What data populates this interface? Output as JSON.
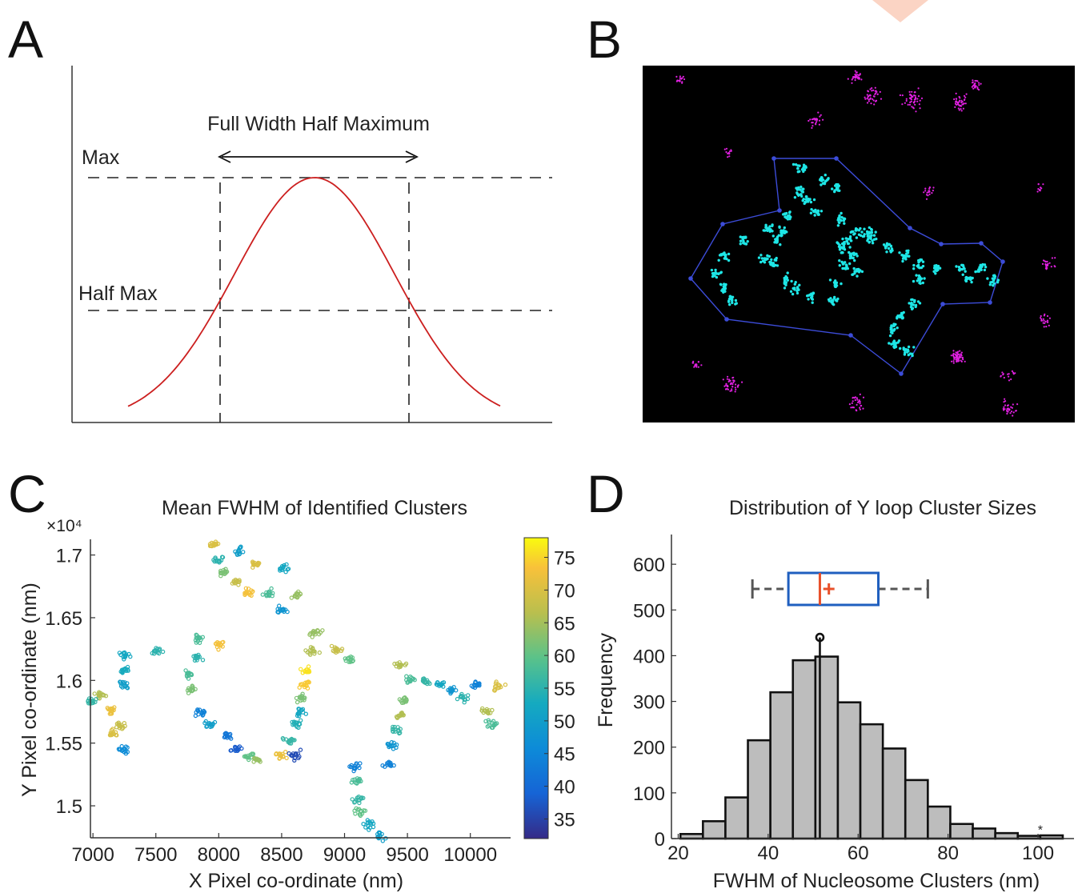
{
  "panels": {
    "a": "A",
    "b": "B",
    "c": "C",
    "d": "D"
  },
  "panel_a": {
    "fwhm_label": "Full Width Half Maximum",
    "max_label": "Max",
    "half_max_label": "Half Max"
  },
  "colors": {
    "curve": "#cc1f1f",
    "cyan": "#1ee6e6",
    "magenta": "#e020e0",
    "hull": "#3c4cd8",
    "hist_fill": "#bdbdbd",
    "box_blue": "#1f5fbf",
    "box_red": "#e8502a"
  },
  "chart_data": [
    {
      "type": "scatter",
      "title": "Mean FWHM of Identified Clusters",
      "xlabel": "X Pixel co-ordinate (nm)",
      "ylabel": "Y Pixel co-ordinate (nm)",
      "y_exponent": "×10⁴",
      "xlim": [
        6980,
        10320
      ],
      "ylim": [
        1.4745,
        1.7125
      ],
      "xticks": [
        7000,
        7500,
        8000,
        8500,
        9000,
        9500,
        10000
      ],
      "xtick_labels": [
        "7000",
        "7500",
        "8000",
        "8500",
        "9000",
        "9500",
        "10000"
      ],
      "yticks": [
        1.5,
        1.55,
        1.6,
        1.65,
        1.7
      ],
      "ytick_labels": [
        "1.5",
        "1.55",
        "1.6",
        "1.65",
        "1.7"
      ],
      "colorbar": {
        "range": [
          32,
          78
        ],
        "ticks": [
          35,
          40,
          45,
          50,
          55,
          60,
          65,
          70,
          75
        ],
        "tick_labels": [
          "35",
          "40",
          "45",
          "50",
          "55",
          "60",
          "65",
          "70",
          "75"
        ]
      },
      "clusters": [
        {
          "x": 7160,
          "y": 1.558,
          "v": 70
        },
        {
          "x": 7220,
          "y": 1.564,
          "v": 68
        },
        {
          "x": 7150,
          "y": 1.576,
          "v": 72
        },
        {
          "x": 7060,
          "y": 1.588,
          "v": 66
        },
        {
          "x": 7250,
          "y": 1.596,
          "v": 50
        },
        {
          "x": 7240,
          "y": 1.608,
          "v": 53
        },
        {
          "x": 7250,
          "y": 1.62,
          "v": 52
        },
        {
          "x": 7240,
          "y": 1.545,
          "v": 46
        },
        {
          "x": 7000,
          "y": 1.583,
          "v": 56
        },
        {
          "x": 7500,
          "y": 1.623,
          "v": 55
        },
        {
          "x": 7760,
          "y": 1.605,
          "v": 58
        },
        {
          "x": 7780,
          "y": 1.593,
          "v": 62
        },
        {
          "x": 7830,
          "y": 1.618,
          "v": 55
        },
        {
          "x": 7840,
          "y": 1.633,
          "v": 58
        },
        {
          "x": 7860,
          "y": 1.574,
          "v": 44
        },
        {
          "x": 7930,
          "y": 1.565,
          "v": 50
        },
        {
          "x": 8000,
          "y": 1.628,
          "v": 73
        },
        {
          "x": 8060,
          "y": 1.555,
          "v": 42
        },
        {
          "x": 8140,
          "y": 1.546,
          "v": 38
        },
        {
          "x": 8240,
          "y": 1.539,
          "v": 60
        },
        {
          "x": 8300,
          "y": 1.537,
          "v": 64
        },
        {
          "x": 8500,
          "y": 1.54,
          "v": 72
        },
        {
          "x": 8600,
          "y": 1.54,
          "v": 36
        },
        {
          "x": 8560,
          "y": 1.552,
          "v": 56
        },
        {
          "x": 8620,
          "y": 1.565,
          "v": 54
        },
        {
          "x": 8640,
          "y": 1.575,
          "v": 52
        },
        {
          "x": 8660,
          "y": 1.586,
          "v": 62
        },
        {
          "x": 8680,
          "y": 1.597,
          "v": 74
        },
        {
          "x": 8700,
          "y": 1.608,
          "v": 76
        },
        {
          "x": 8740,
          "y": 1.623,
          "v": 66
        },
        {
          "x": 8760,
          "y": 1.638,
          "v": 64
        },
        {
          "x": 8940,
          "y": 1.624,
          "v": 68
        },
        {
          "x": 9040,
          "y": 1.617,
          "v": 60
        },
        {
          "x": 9080,
          "y": 1.531,
          "v": 44
        },
        {
          "x": 9100,
          "y": 1.52,
          "v": 58
        },
        {
          "x": 9110,
          "y": 1.505,
          "v": 56
        },
        {
          "x": 9130,
          "y": 1.495,
          "v": 60
        },
        {
          "x": 9190,
          "y": 1.485,
          "v": 52
        },
        {
          "x": 9270,
          "y": 1.476,
          "v": 50
        },
        {
          "x": 9360,
          "y": 1.533,
          "v": 44
        },
        {
          "x": 9380,
          "y": 1.548,
          "v": 48
        },
        {
          "x": 9410,
          "y": 1.56,
          "v": 56
        },
        {
          "x": 9440,
          "y": 1.572,
          "v": 66
        },
        {
          "x": 9480,
          "y": 1.584,
          "v": 62
        },
        {
          "x": 9440,
          "y": 1.612,
          "v": 66
        },
        {
          "x": 9520,
          "y": 1.601,
          "v": 58
        },
        {
          "x": 9640,
          "y": 1.599,
          "v": 56
        },
        {
          "x": 9760,
          "y": 1.597,
          "v": 52
        },
        {
          "x": 9860,
          "y": 1.592,
          "v": 48
        },
        {
          "x": 9940,
          "y": 1.586,
          "v": 55
        },
        {
          "x": 10050,
          "y": 1.596,
          "v": 44
        },
        {
          "x": 10120,
          "y": 1.576,
          "v": 66
        },
        {
          "x": 10160,
          "y": 1.565,
          "v": 58
        },
        {
          "x": 10230,
          "y": 1.595,
          "v": 70
        },
        {
          "x": 7960,
          "y": 1.708,
          "v": 70
        },
        {
          "x": 8000,
          "y": 1.696,
          "v": 55
        },
        {
          "x": 8040,
          "y": 1.686,
          "v": 62
        },
        {
          "x": 8140,
          "y": 1.678,
          "v": 68
        },
        {
          "x": 8240,
          "y": 1.67,
          "v": 73
        },
        {
          "x": 8290,
          "y": 1.693,
          "v": 70
        },
        {
          "x": 8400,
          "y": 1.669,
          "v": 58
        },
        {
          "x": 8520,
          "y": 1.69,
          "v": 52
        },
        {
          "x": 8620,
          "y": 1.668,
          "v": 64
        },
        {
          "x": 8500,
          "y": 1.656,
          "v": 48
        },
        {
          "x": 8160,
          "y": 1.703,
          "v": 50
        }
      ]
    },
    {
      "type": "bar",
      "title": "Distribution of Y loop Cluster Sizes",
      "xlabel": "FWHM of Nucleosome Clusters (nm)",
      "ylabel": "Frequency",
      "xlim": [
        18.5,
        108
      ],
      "ylim": [
        0,
        665
      ],
      "xticks": [
        20,
        40,
        60,
        80,
        100
      ],
      "xtick_labels": [
        "20",
        "40",
        "60",
        "80",
        "100"
      ],
      "yticks": [
        0,
        100,
        200,
        300,
        400,
        500,
        600
      ],
      "ytick_labels": [
        "0",
        "100",
        "200",
        "300",
        "400",
        "500",
        "600"
      ],
      "bin_edges": [
        20.5,
        25.5,
        30.5,
        35.5,
        40.5,
        45.5,
        50.5,
        55.5,
        60.5,
        65.5,
        70.5,
        75.5,
        80.5,
        85.5,
        90.5,
        95.5,
        100.5,
        105.5
      ],
      "values": [
        10,
        38,
        90,
        215,
        320,
        390,
        398,
        298,
        250,
        197,
        128,
        70,
        32,
        22,
        12,
        6,
        7
      ],
      "mode_marker": {
        "x": 51.5,
        "y": 440
      },
      "boxplot": {
        "whisker_low": 36.5,
        "q1": 44.5,
        "median": 51.5,
        "mean": 53.5,
        "q3": 64.5,
        "whisker_high": 75.5,
        "outlier": 100.5,
        "outlier_label": "*"
      }
    }
  ]
}
